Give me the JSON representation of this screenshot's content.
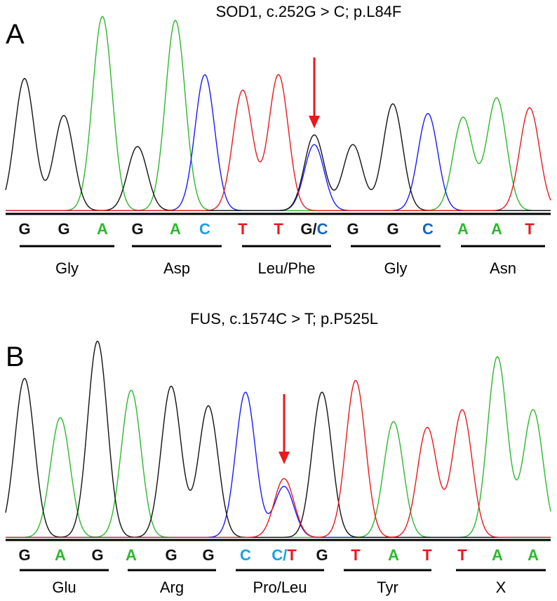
{
  "colors": {
    "A": "#2db82d",
    "C_trace": "#1a1aff",
    "G": "#111111",
    "T": "#e8191e",
    "C_label": "#1aa0e6",
    "C_label_dark": "#1565c0",
    "arrow": "#e8191e"
  },
  "panels": [
    {
      "letter": "A",
      "title": "SOD1, c.252G > C; p.L84F",
      "bases": [
        {
          "text": "G",
          "color": "G"
        },
        {
          "text": "G",
          "color": "G"
        },
        {
          "text": "A",
          "color": "A"
        },
        {
          "text": "G",
          "color": "G"
        },
        {
          "text": "A",
          "color": "A"
        },
        {
          "text": "C",
          "color": "C_label"
        },
        {
          "text": "T",
          "color": "T"
        },
        {
          "text": "T",
          "color": "T"
        },
        {
          "parts": [
            {
              "text": "G",
              "color": "G"
            },
            {
              "text": "/",
              "color": "G"
            },
            {
              "text": "C",
              "color": "C_label_dark"
            }
          ]
        },
        {
          "text": "G",
          "color": "G"
        },
        {
          "text": "G",
          "color": "G"
        },
        {
          "text": "C",
          "color": "C_label_dark"
        },
        {
          "text": "A",
          "color": "A"
        },
        {
          "text": "A",
          "color": "A"
        },
        {
          "text": "T",
          "color": "T"
        }
      ],
      "codons": [
        "Gly",
        "Asp",
        "Leu/Phe",
        "Gly",
        "Asn"
      ],
      "peaks": [
        {
          "base": "G",
          "h": 0.68
        },
        {
          "base": "G",
          "h": 0.49
        },
        {
          "base": "A",
          "h": 1.0
        },
        {
          "base": "G",
          "h": 0.33
        },
        {
          "base": "A",
          "h": 0.98
        },
        {
          "base": "C",
          "h": 0.7
        },
        {
          "base": "T",
          "h": 0.62
        },
        {
          "base": "T",
          "h": 0.7
        },
        {
          "base": "G",
          "h": 0.39,
          "extra": {
            "base": "C",
            "h": 0.34
          }
        },
        {
          "base": "G",
          "h": 0.34
        },
        {
          "base": "G",
          "h": 0.55
        },
        {
          "base": "C",
          "h": 0.5
        },
        {
          "base": "A",
          "h": 0.48
        },
        {
          "base": "A",
          "h": 0.58
        },
        {
          "base": "T",
          "h": 0.53
        }
      ],
      "arrow_at": 8
    },
    {
      "letter": "B",
      "title": "FUS, c.1574C > T; p.P525L",
      "bases": [
        {
          "text": "G",
          "color": "G"
        },
        {
          "text": "A",
          "color": "A"
        },
        {
          "text": "G",
          "color": "G"
        },
        {
          "text": "A",
          "color": "A"
        },
        {
          "text": "G",
          "color": "G"
        },
        {
          "text": "G",
          "color": "G"
        },
        {
          "text": "C",
          "color": "C_label"
        },
        {
          "parts": [
            {
              "text": "C",
              "color": "C_label"
            },
            {
              "text": "/",
              "color": "C_label"
            },
            {
              "text": "T",
              "color": "T"
            }
          ]
        },
        {
          "text": "G",
          "color": "G"
        },
        {
          "text": "T",
          "color": "T"
        },
        {
          "text": "A",
          "color": "A"
        },
        {
          "text": "T",
          "color": "T"
        },
        {
          "text": "T",
          "color": "T"
        },
        {
          "text": "A",
          "color": "A"
        },
        {
          "text": "A",
          "color": "A"
        }
      ],
      "codons": [
        "Glu",
        "Arg",
        "Pro/Leu",
        "Tyr",
        "X"
      ],
      "peaks": [
        {
          "base": "G",
          "h": 0.81
        },
        {
          "base": "A",
          "h": 0.61
        },
        {
          "base": "G",
          "h": 1.0
        },
        {
          "base": "A",
          "h": 0.75
        },
        {
          "base": "G",
          "h": 0.77
        },
        {
          "base": "G",
          "h": 0.67
        },
        {
          "base": "C",
          "h": 0.74
        },
        {
          "base": "T",
          "h": 0.3,
          "extra": {
            "base": "C",
            "h": 0.26
          }
        },
        {
          "base": "G",
          "h": 0.74
        },
        {
          "base": "T",
          "h": 0.8
        },
        {
          "base": "A",
          "h": 0.59
        },
        {
          "base": "T",
          "h": 0.56
        },
        {
          "base": "T",
          "h": 0.65
        },
        {
          "base": "A",
          "h": 0.92
        },
        {
          "base": "A",
          "h": 0.65
        }
      ],
      "arrow_at": 7
    }
  ]
}
